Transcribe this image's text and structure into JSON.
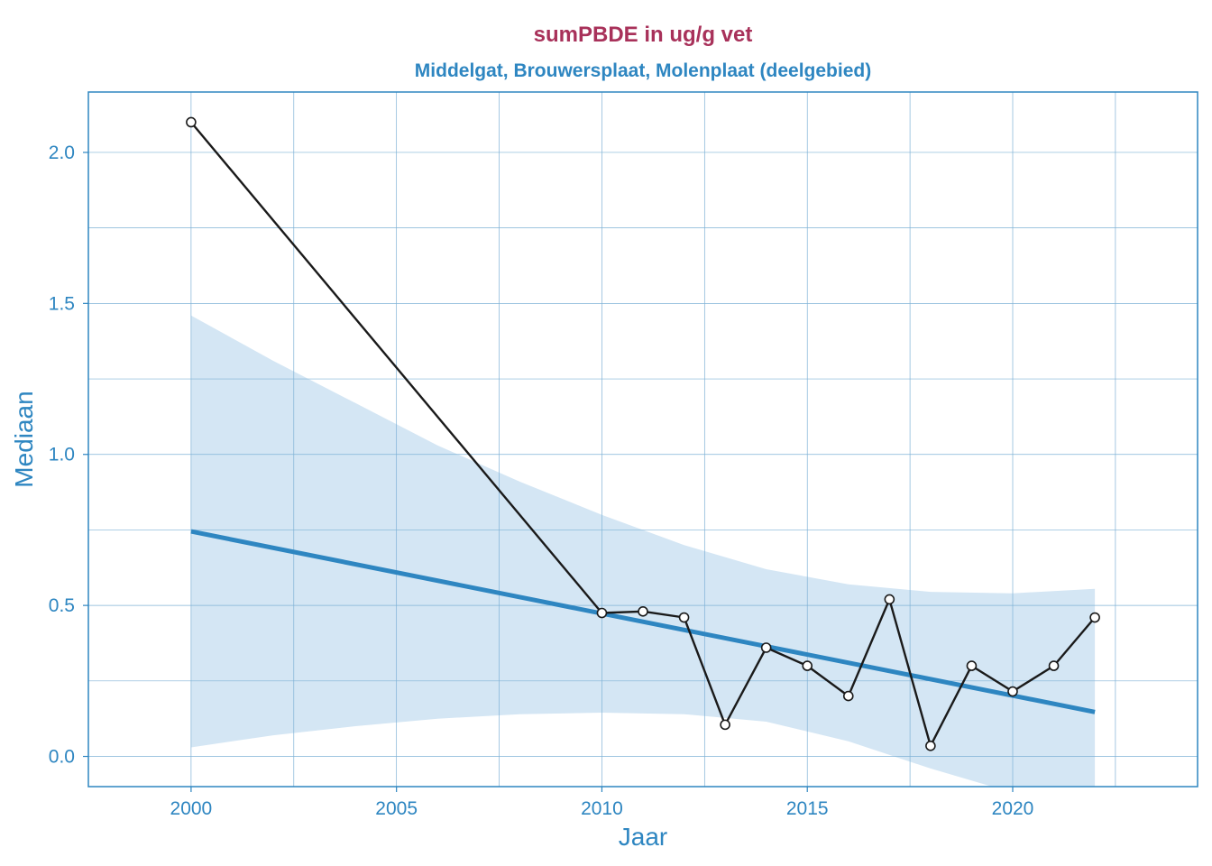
{
  "chart_data": {
    "type": "line",
    "title": "sumPBDE in ug/g vet",
    "subtitle": "Middelgat, Brouwersplaat, Molenplaat (deelgebied)",
    "xlabel": "Jaar",
    "ylabel": "Mediaan",
    "xlim": [
      1997.5,
      2024.5
    ],
    "ylim": [
      -0.1,
      2.2
    ],
    "x_ticks": [
      2000,
      2005,
      2010,
      2015,
      2020
    ],
    "x_tick_labels": [
      "2000",
      "2005",
      "2010",
      "2015",
      "2020"
    ],
    "y_ticks": [
      0.0,
      0.5,
      1.0,
      1.5,
      2.0
    ],
    "y_tick_labels": [
      "0.0",
      "0.5",
      "1.0",
      "1.5",
      "2.0"
    ],
    "grid": true,
    "series": [
      {
        "x": [
          2000,
          2010,
          2011,
          2012,
          2013,
          2014,
          2015,
          2016,
          2017,
          2018,
          2019,
          2020,
          2021,
          2022
        ],
        "values": [
          2.1,
          0.475,
          0.48,
          0.46,
          0.105,
          0.36,
          0.3,
          0.2,
          0.52,
          0.035,
          0.3,
          0.215,
          0.3,
          0.46
        ]
      }
    ],
    "trend": {
      "x": [
        2000,
        2022
      ],
      "values": [
        0.745,
        0.147
      ]
    },
    "confidence_band": {
      "x": [
        2000,
        2002,
        2004,
        2006,
        2008,
        2010,
        2012,
        2014,
        2016,
        2018,
        2020,
        2022
      ],
      "upper": [
        1.46,
        1.31,
        1.17,
        1.03,
        0.91,
        0.8,
        0.7,
        0.62,
        0.57,
        0.545,
        0.54,
        0.555
      ],
      "lower": [
        0.03,
        0.07,
        0.1,
        0.125,
        0.14,
        0.145,
        0.14,
        0.115,
        0.05,
        -0.04,
        -0.12,
        -0.22
      ]
    },
    "colors": {
      "title": "#a8315a",
      "accent": "#2e86c1",
      "band": "#d4e6f4",
      "grid": "#7fb2d6",
      "series": "#1a1a1a"
    }
  }
}
